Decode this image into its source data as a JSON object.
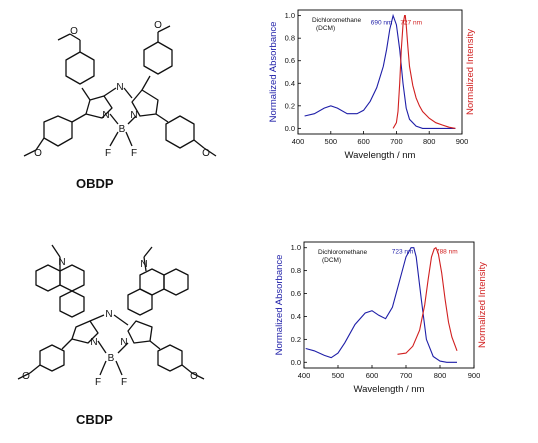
{
  "compounds": [
    {
      "name": "OBDP"
    },
    {
      "name": "CBDP"
    }
  ],
  "structure_labels": {
    "methoxy": "O",
    "nitrogen": "N",
    "boron": "B",
    "fluorine": "F"
  },
  "colors": {
    "absorbance": "#1f1fa8",
    "emission": "#d11f1f",
    "axis": "#000000"
  },
  "chart_data": [
    {
      "type": "line",
      "solvent_label_line1": "Dichloromethane",
      "solvent_label_line2": "(DCM)",
      "xlabel": "Wavelength / nm",
      "ylabel_left": "Normalized Absorbance",
      "ylabel_right": "Normalized Intensity",
      "xlim": [
        400,
        900
      ],
      "ylim": [
        -0.05,
        1.05
      ],
      "xticks": [
        400,
        500,
        600,
        700,
        800,
        900
      ],
      "yticks": [
        0.0,
        0.2,
        0.4,
        0.6,
        0.8,
        1.0
      ],
      "annotations": [
        {
          "text": "690 nm",
          "x": 655,
          "y": 0.92,
          "series": "absorbance"
        },
        {
          "text": "727 nm",
          "x": 745,
          "y": 0.92,
          "series": "emission"
        }
      ],
      "series": [
        {
          "key": "absorbance",
          "x": [
            420,
            450,
            480,
            500,
            520,
            550,
            580,
            600,
            620,
            640,
            660,
            670,
            680,
            690,
            700,
            710,
            720,
            730,
            740,
            760,
            780,
            800,
            850,
            880
          ],
          "y": [
            0.11,
            0.13,
            0.18,
            0.2,
            0.18,
            0.13,
            0.13,
            0.16,
            0.24,
            0.36,
            0.55,
            0.7,
            0.88,
            1.0,
            0.92,
            0.7,
            0.4,
            0.18,
            0.08,
            0.02,
            0.0,
            0.0,
            0.0,
            0.0
          ]
        },
        {
          "key": "emission",
          "x": [
            690,
            700,
            705,
            710,
            715,
            720,
            725,
            727,
            730,
            735,
            740,
            750,
            760,
            770,
            780,
            800,
            820,
            840,
            860,
            880
          ],
          "y": [
            0.0,
            0.05,
            0.15,
            0.4,
            0.7,
            0.92,
            1.0,
            1.0,
            0.92,
            0.72,
            0.55,
            0.38,
            0.27,
            0.2,
            0.15,
            0.09,
            0.05,
            0.03,
            0.01,
            0.0
          ]
        }
      ]
    },
    {
      "type": "line",
      "solvent_label_line1": "Dichloromethane",
      "solvent_label_line2": "(DCM)",
      "xlabel": "Wavelength / nm",
      "ylabel_left": "Normalized Absorbance",
      "ylabel_right": "Normalized Intensity",
      "xlim": [
        400,
        900
      ],
      "ylim": [
        -0.05,
        1.05
      ],
      "xticks": [
        400,
        500,
        600,
        700,
        800,
        900
      ],
      "yticks": [
        0.0,
        0.2,
        0.4,
        0.6,
        0.8,
        1.0
      ],
      "annotations": [
        {
          "text": "723 nm",
          "x": 690,
          "y": 0.95,
          "series": "absorbance"
        },
        {
          "text": "788 nm",
          "x": 820,
          "y": 0.95,
          "series": "emission"
        }
      ],
      "series": [
        {
          "key": "absorbance",
          "x": [
            405,
            430,
            460,
            480,
            500,
            520,
            550,
            580,
            600,
            620,
            640,
            660,
            680,
            700,
            715,
            723,
            730,
            745,
            760,
            780,
            800,
            820,
            850
          ],
          "y": [
            0.12,
            0.1,
            0.06,
            0.04,
            0.08,
            0.17,
            0.33,
            0.43,
            0.45,
            0.41,
            0.38,
            0.48,
            0.7,
            0.92,
            1.0,
            1.0,
            0.92,
            0.55,
            0.2,
            0.05,
            0.01,
            0.0,
            0.0
          ]
        },
        {
          "key": "emission",
          "x": [
            675,
            700,
            720,
            740,
            755,
            765,
            775,
            783,
            788,
            795,
            805,
            815,
            825,
            835,
            845,
            850
          ],
          "y": [
            0.07,
            0.08,
            0.14,
            0.28,
            0.5,
            0.72,
            0.92,
            0.99,
            1.0,
            0.95,
            0.78,
            0.55,
            0.35,
            0.22,
            0.14,
            0.1
          ]
        }
      ]
    }
  ]
}
